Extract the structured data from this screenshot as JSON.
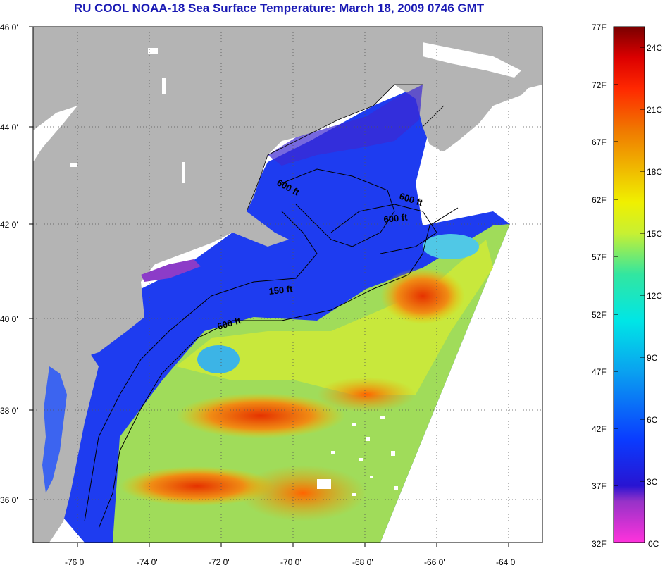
{
  "title": "RU COOL  NOAA-18  Sea Surface Temperature:  March 18, 2009 0746 GMT",
  "lat_labels": [
    "46 0'",
    "44 0'",
    "42 0'",
    "40 0'",
    "38 0'",
    "36 0'"
  ],
  "lon_labels": [
    "-76 0'",
    "-74 0'",
    "-72 0'",
    "-70 0'",
    "-68 0'",
    "-66 0'",
    "-64 0'"
  ],
  "contour_labels": [
    "600 ft",
    "600 ft",
    "600 ft",
    "150 ft",
    "600 ft"
  ],
  "colorbar": {
    "f_labels": [
      "77F",
      "72F",
      "67F",
      "62F",
      "57F",
      "52F",
      "47F",
      "42F",
      "37F",
      "32F"
    ],
    "c_labels": [
      "24C",
      "21C",
      "18C",
      "15C",
      "12C",
      "9C",
      "6C",
      "3C",
      "0C"
    ]
  },
  "colors": {
    "land": "#b4b4b4",
    "cold_water": "#1432f0",
    "title": "#1a1ab4"
  }
}
